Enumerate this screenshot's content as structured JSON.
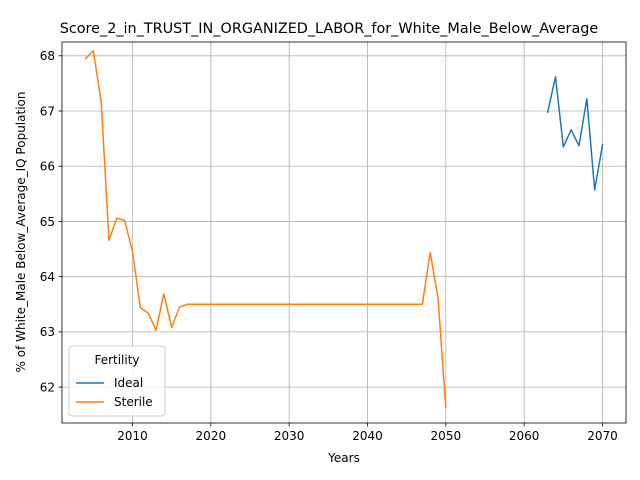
{
  "chart_data": {
    "type": "line",
    "title": "Score_2_in_TRUST_IN_ORGANIZED_LABOR_for_White_Male_Below_Average",
    "xlabel": "Years",
    "ylabel": "% of White_Male Below_Average_IQ Population",
    "xlim": [
      2001,
      2073
    ],
    "ylim": [
      61.35,
      68.25
    ],
    "xticks": [
      2010,
      2020,
      2030,
      2040,
      2050,
      2060,
      2070
    ],
    "yticks": [
      62,
      63,
      64,
      65,
      66,
      67,
      68
    ],
    "grid": true,
    "legend": {
      "title": "Fertility",
      "position": "lower-left"
    },
    "series": [
      {
        "name": "Ideal",
        "color": "#1f77b4",
        "x": [
          2063,
          2064,
          2065,
          2066,
          2067,
          2068,
          2069,
          2070
        ],
        "y": [
          66.98,
          67.62,
          66.35,
          66.66,
          66.37,
          67.22,
          65.57,
          66.39
        ]
      },
      {
        "name": "Sterile",
        "color": "#ff7f0e",
        "x": [
          2004,
          2005,
          2006,
          2007,
          2008,
          2009,
          2010,
          2011,
          2012,
          2013,
          2014,
          2015,
          2016,
          2017,
          2018,
          2019,
          2020,
          2025,
          2030,
          2035,
          2040,
          2045,
          2046,
          2047,
          2048,
          2049,
          2050
        ],
        "y": [
          67.95,
          68.09,
          67.17,
          64.66,
          65.06,
          65.02,
          64.45,
          63.44,
          63.34,
          63.03,
          63.69,
          63.08,
          63.45,
          63.5,
          63.5,
          63.5,
          63.5,
          63.5,
          63.5,
          63.5,
          63.5,
          63.5,
          63.5,
          63.5,
          64.44,
          63.62,
          61.63
        ]
      }
    ]
  }
}
